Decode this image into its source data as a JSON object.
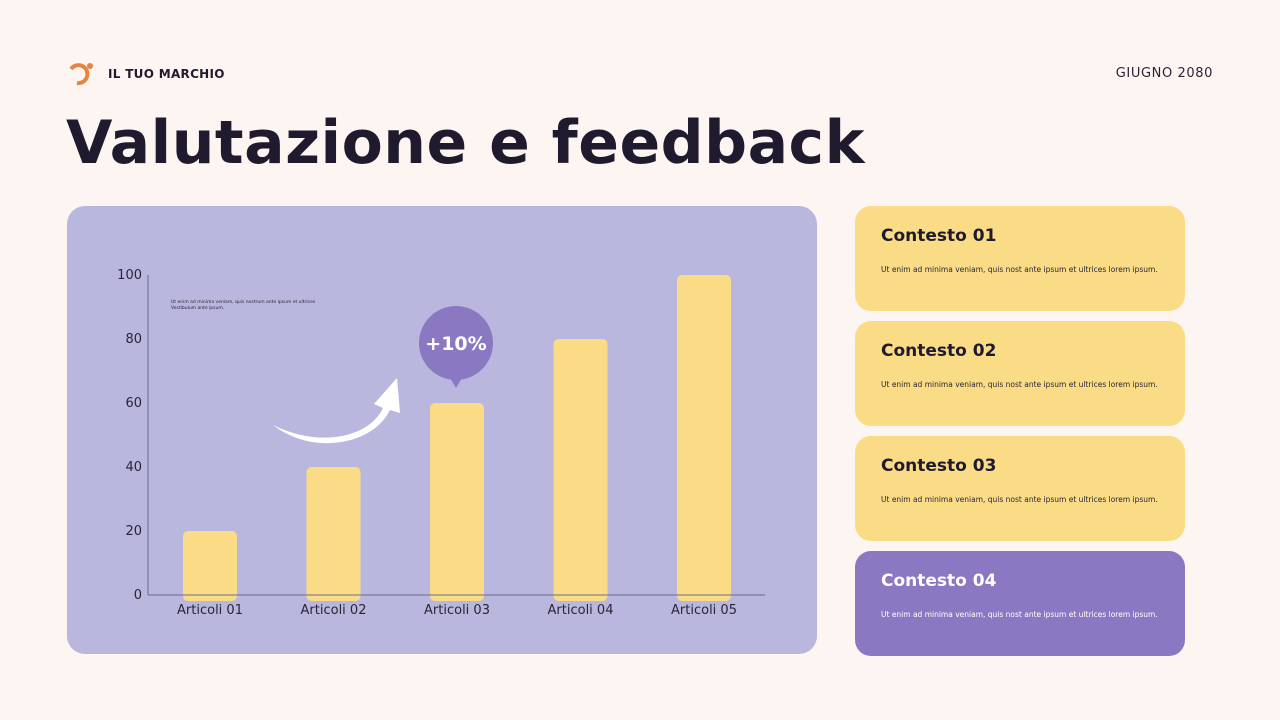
{
  "brand": {
    "name": "IL TUO MARCHIO",
    "logo_icon": "brand-logo-icon"
  },
  "date": "GIUGNO 2080",
  "title": "Valutazione e feedback",
  "colors": {
    "background": "#fcf5f1",
    "panel": "#b9b7de",
    "bar": "#fadc86",
    "accent": "#8a79c2",
    "brand": "#e8843c"
  },
  "chart_note": "Ut enim ad minima veniam, quis nostrum ante ipsum et ultrices Vestibulum ante ipsum.",
  "callout": {
    "label": "+10%",
    "icon": "growth-arrow-icon"
  },
  "chart_data": {
    "type": "bar",
    "categories": [
      "Articoli 01",
      "Articoli 02",
      "Articoli 03",
      "Articoli 04",
      "Articoli 05"
    ],
    "values": [
      20,
      40,
      60,
      80,
      100
    ],
    "yticks": [
      0,
      20,
      40,
      60,
      80,
      100
    ],
    "ylim": [
      0,
      100
    ],
    "title": "",
    "xlabel": "",
    "ylabel": ""
  },
  "cards": [
    {
      "title": "Contesto 01",
      "text": "Ut enim ad minima veniam, quis nost ante ipsum et ultrices lorem ipsum."
    },
    {
      "title": "Contesto 02",
      "text": "Ut enim ad minima veniam, quis nost ante ipsum et ultrices lorem ipsum."
    },
    {
      "title": "Contesto 03",
      "text": "Ut enim ad minima veniam, quis nost ante ipsum et ultrices lorem ipsum."
    },
    {
      "title": "Contesto 04",
      "text": "Ut enim ad minima veniam, quis nost ante ipsum et ultrices lorem ipsum."
    }
  ]
}
